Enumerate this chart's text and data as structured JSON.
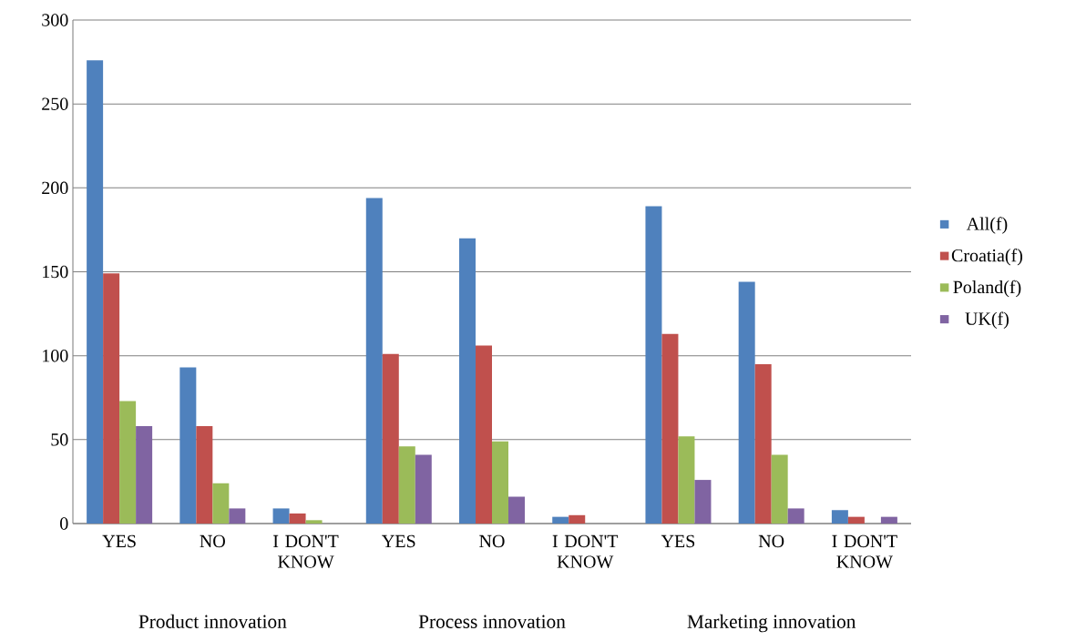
{
  "chart_data": {
    "type": "bar",
    "categories": [
      "YES",
      "NO",
      "I DON'T KNOW",
      "YES",
      "NO",
      "I DON'T KNOW",
      "YES",
      "NO",
      "I DON'T KNOW"
    ],
    "series": [
      {
        "name": "All(f)",
        "color": "#4f81bd",
        "values": [
          276,
          93,
          9,
          194,
          170,
          4,
          189,
          144,
          8
        ]
      },
      {
        "name": "Croatia(f)",
        "color": "#c0504d",
        "values": [
          149,
          58,
          6,
          101,
          106,
          5,
          113,
          95,
          4
        ]
      },
      {
        "name": "Poland(f)",
        "color": "#9bbb59",
        "values": [
          73,
          24,
          2,
          46,
          49,
          0,
          52,
          41,
          0
        ]
      },
      {
        "name": "UK(f)",
        "color": "#8064a2",
        "values": [
          58,
          9,
          0,
          41,
          16,
          0,
          26,
          9,
          4
        ]
      }
    ],
    "annotations": [
      "Product innovation",
      "Process innovation",
      "Marketing innovation"
    ],
    "ylim": [
      0,
      300
    ],
    "yticks": [
      0,
      50,
      100,
      150,
      200,
      250,
      300
    ],
    "grid": "y",
    "legend": "right"
  }
}
